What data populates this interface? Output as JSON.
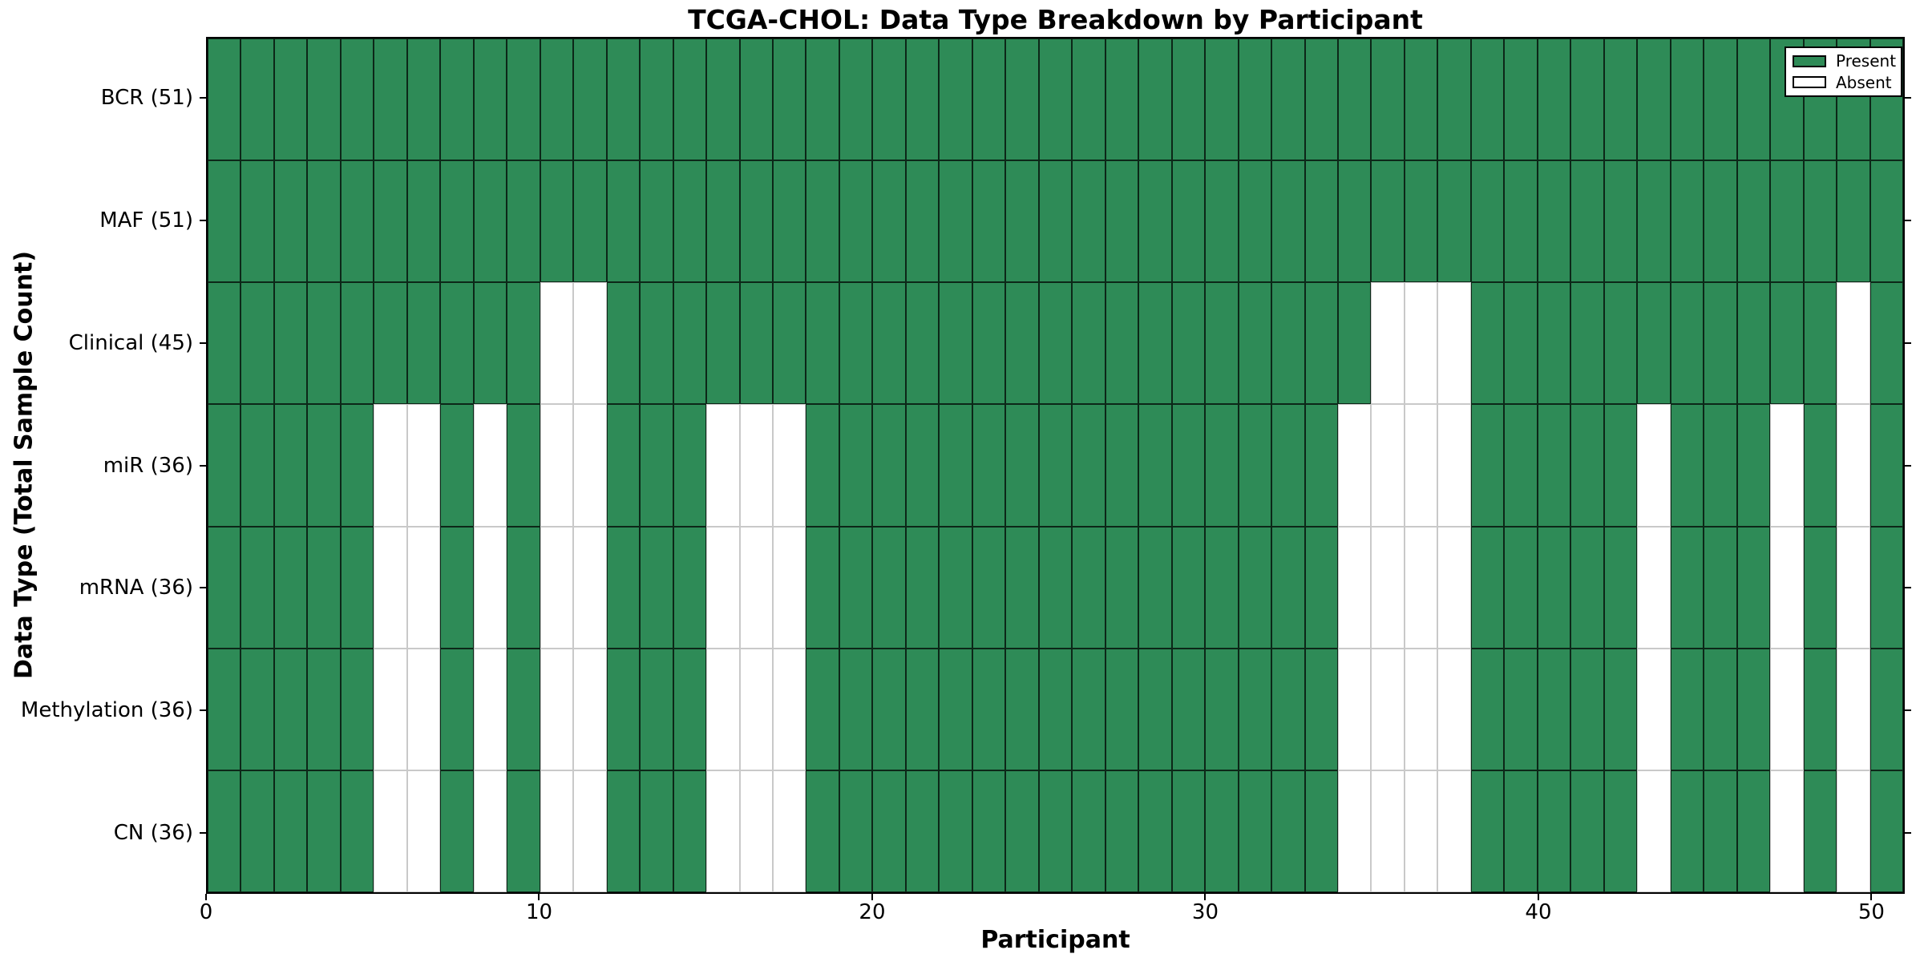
{
  "chart_data": {
    "type": "heatmap",
    "title": "TCGA-CHOL: Data Type Breakdown by Participant",
    "xlabel": "Participant",
    "ylabel": "Data Type (Total Sample Count)",
    "n_participants": 51,
    "xlim": [
      0,
      51
    ],
    "x_ticks": [
      0,
      10,
      20,
      30,
      40,
      50
    ],
    "grid": "cell-edges",
    "legend_position": "upper-right",
    "legend": [
      {
        "label": "Present",
        "color": "#2e8b57"
      },
      {
        "label": "Absent",
        "color": "#ffffff"
      }
    ],
    "colors": {
      "present": "#2e8b57",
      "absent": "#ffffff",
      "present_edge": "#1d1d1d",
      "absent_edge": "#c9c9c9",
      "frame": "#000000"
    },
    "rows": [
      {
        "label": "BCR (51)",
        "total": 51,
        "absent": []
      },
      {
        "label": "MAF (51)",
        "total": 51,
        "absent": []
      },
      {
        "label": "Clinical (45)",
        "total": 45,
        "absent": [
          10,
          11,
          35,
          36,
          37,
          49
        ]
      },
      {
        "label": "miR (36)",
        "total": 36,
        "absent": [
          5,
          6,
          8,
          10,
          11,
          15,
          16,
          17,
          34,
          35,
          36,
          37,
          43,
          47,
          49
        ]
      },
      {
        "label": "mRNA (36)",
        "total": 36,
        "absent": [
          5,
          6,
          8,
          10,
          11,
          15,
          16,
          17,
          34,
          35,
          36,
          37,
          43,
          47,
          49
        ]
      },
      {
        "label": "Methylation (36)",
        "total": 36,
        "absent": [
          5,
          6,
          8,
          10,
          11,
          15,
          16,
          17,
          34,
          35,
          36,
          37,
          43,
          47,
          49
        ]
      },
      {
        "label": "CN (36)",
        "total": 36,
        "absent": [
          5,
          6,
          8,
          10,
          11,
          15,
          16,
          17,
          34,
          35,
          36,
          37,
          43,
          47,
          49
        ]
      }
    ]
  }
}
